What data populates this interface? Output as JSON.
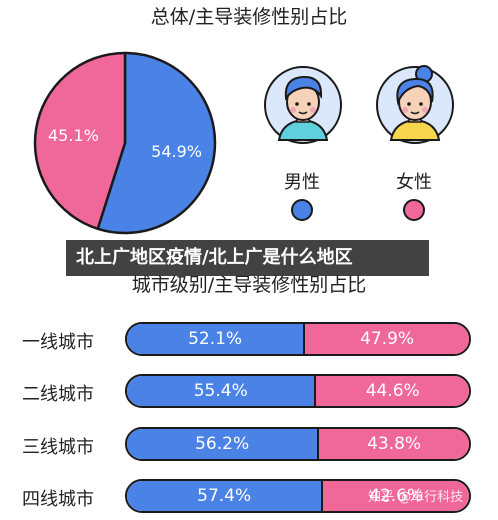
{
  "pie_chart": {
    "title": "总体/主导装修性别占比",
    "slices": [
      {
        "key": "male",
        "value": 54.9,
        "label": "54.9%",
        "color": "#4a82e6"
      },
      {
        "key": "female",
        "value": 45.1,
        "label": "45.1%",
        "color": "#f0679a"
      }
    ]
  },
  "legend": {
    "male": {
      "label": "男性",
      "color": "#4a82e6"
    },
    "female": {
      "label": "女性",
      "color": "#f0679a"
    }
  },
  "banner_text": "北上广地区疫情/北上广是什么地区",
  "bar_chart": {
    "title": "城市级别/主导装修性别占比",
    "rows": [
      {
        "label": "一线城市",
        "male": 52.1,
        "female": 47.9,
        "male_label": "52.1%",
        "female_label": "47.9%"
      },
      {
        "label": "二线城市",
        "male": 55.4,
        "female": 44.6,
        "male_label": "55.4%",
        "female_label": "44.6%"
      },
      {
        "label": "三线城市",
        "male": 56.2,
        "female": 43.8,
        "male_label": "56.2%",
        "female_label": "43.8%"
      },
      {
        "label": "四线城市",
        "male": 57.4,
        "female": 42.6,
        "male_label": "57.4%",
        "female_label": "42.6%"
      }
    ]
  },
  "watermark": "知乎 @单行科技",
  "chart_data": [
    {
      "type": "pie",
      "title": "总体/主导装修性别占比",
      "categories": [
        "男性",
        "女性"
      ],
      "values": [
        54.9,
        45.1
      ]
    },
    {
      "type": "bar",
      "title": "城市级别/主导装修性别占比",
      "categories": [
        "一线城市",
        "二线城市",
        "三线城市",
        "四线城市"
      ],
      "series": [
        {
          "name": "男性",
          "values": [
            52.1,
            55.4,
            56.2,
            57.4
          ]
        },
        {
          "name": "女性",
          "values": [
            47.9,
            44.6,
            43.8,
            42.6
          ]
        }
      ],
      "stacked": true
    }
  ]
}
